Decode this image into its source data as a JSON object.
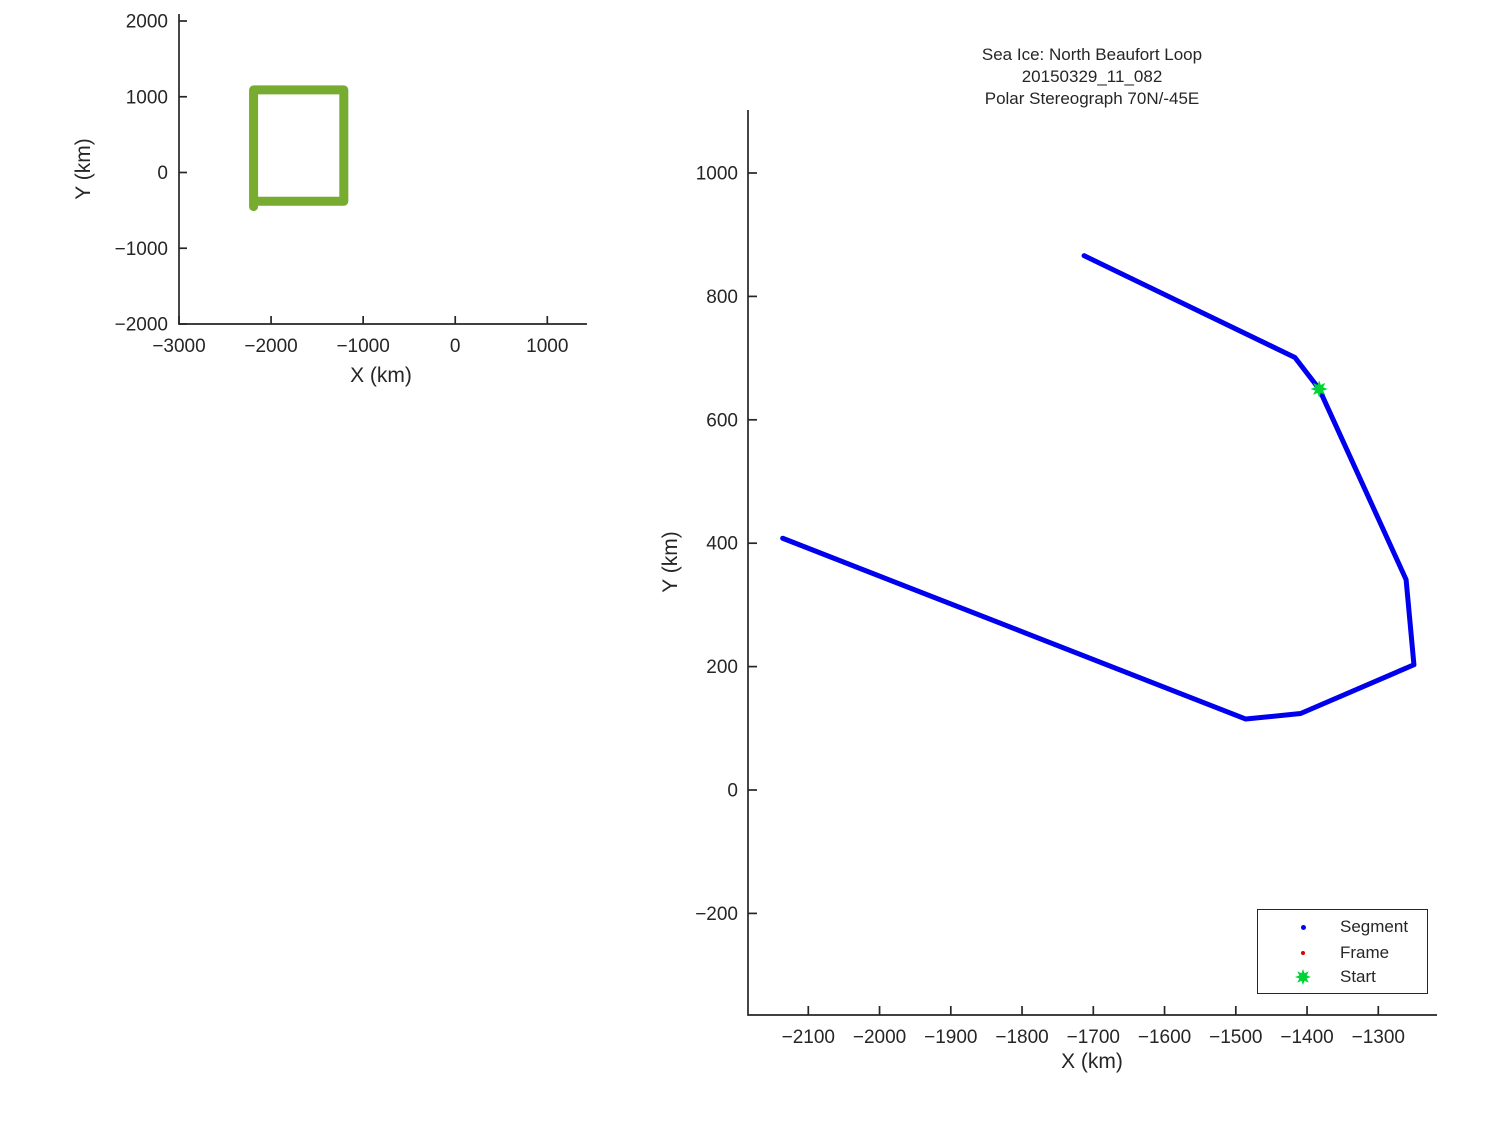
{
  "overview": {
    "xlabel": "X (km)",
    "ylabel": "Y (km)"
  },
  "main": {
    "title_lines": [
      "Sea Ice: North Beaufort Loop",
      "20150329_11_082",
      "Polar Stereograph 70N/-45E"
    ],
    "xlabel": "X (km)",
    "ylabel": "Y (km)",
    "legend": {
      "items": [
        {
          "label": "Segment",
          "marker": "dot",
          "color": "#0000EE"
        },
        {
          "label": "Frame",
          "marker": "dot",
          "color": "#DD0000"
        },
        {
          "label": "Start",
          "marker": "star",
          "color": "#00D435"
        }
      ]
    }
  },
  "chart_data": [
    {
      "type": "line",
      "name": "overview-extent-map",
      "title": "",
      "xlabel": "X (km)",
      "ylabel": "Y (km)",
      "xlim": [
        -3000,
        1430
      ],
      "ylim": [
        -2000,
        2090
      ],
      "x_ticks": [
        -3000,
        -2000,
        -1000,
        0,
        1000
      ],
      "y_ticks": [
        2000,
        1000,
        0,
        -1000,
        -2000
      ],
      "grid": false,
      "series": [
        {
          "name": "loop-extent-box",
          "type": "line",
          "color": "#77AC30",
          "linewidth": 9,
          "x": [
            -2190,
            -2190,
            -1210,
            -1210,
            -2190
          ],
          "y": [
            -450,
            1090,
            1090,
            -380,
            -380
          ]
        }
      ]
    },
    {
      "type": "line",
      "name": "trajectory-plot",
      "title": "Sea Ice: North Beaufort Loop 20150329_11_082 Polar Stereograph 70N/-45E",
      "xlabel": "X (km)",
      "ylabel": "Y (km)",
      "xlim": [
        -2185,
        -1218
      ],
      "ylim": [
        -365,
        1102
      ],
      "x_ticks": [
        -2100,
        -2000,
        -1900,
        -1800,
        -1700,
        -1600,
        -1500,
        -1400,
        -1300
      ],
      "y_ticks": [
        1000,
        800,
        600,
        400,
        200,
        0,
        -200
      ],
      "grid": false,
      "legend_position": "lower right",
      "series": [
        {
          "name": "Segment",
          "type": "line",
          "color": "#0000EE",
          "linewidth": 5,
          "x": [
            -1713,
            -1417,
            -1383,
            -1261,
            -1250,
            -1409,
            -1486,
            -2136
          ],
          "y": [
            866,
            701,
            650,
            341,
            203,
            124,
            115,
            408
          ]
        },
        {
          "name": "Frame",
          "type": "scatter",
          "color": "#DD0000",
          "x": [],
          "y": []
        },
        {
          "name": "Start",
          "type": "scatter",
          "marker": "star",
          "markersize": 17,
          "color": "#00D435",
          "x": [
            -1383
          ],
          "y": [
            650
          ]
        }
      ]
    }
  ]
}
